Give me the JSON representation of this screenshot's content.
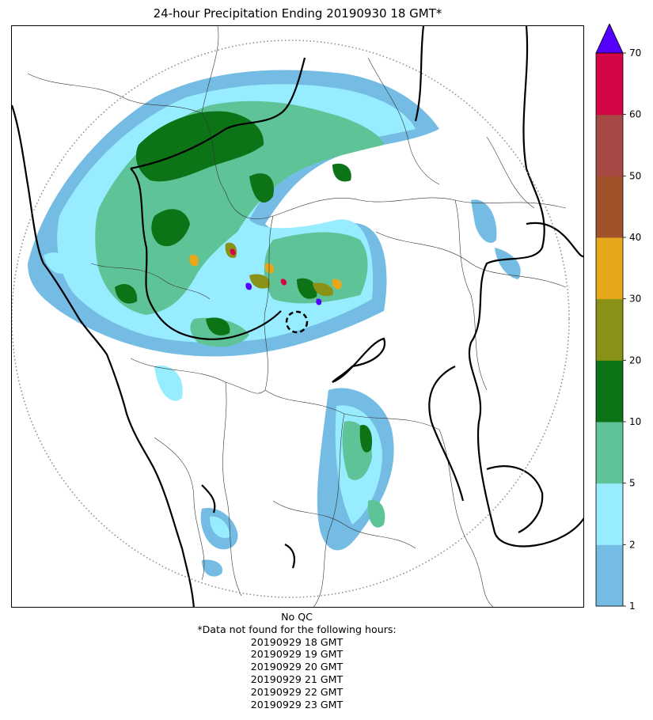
{
  "title": "24-hour Precipitation Ending 20190930 18 GMT*",
  "notes": {
    "qc": "No QC",
    "missing_header": "*Data not found for the following hours:",
    "missing_hours": [
      "20190929 18 GMT",
      "20190929 19 GMT",
      "20190929 20 GMT",
      "20190929 21 GMT",
      "20190929 22 GMT",
      "20190929 23 GMT"
    ]
  },
  "colorbar": {
    "ticks": [
      1,
      2,
      5,
      10,
      20,
      30,
      40,
      50,
      60,
      70
    ],
    "colors": [
      "#74bce3",
      "#98ecff",
      "#5ec497",
      "#0d7317",
      "#899217",
      "#e6a71b",
      "#a1522a",
      "#a74944",
      "#d40546"
    ],
    "over_color": "#5500ff"
  },
  "map": {
    "range_ring": "dotted",
    "center_marker": "dashed-circle"
  }
}
